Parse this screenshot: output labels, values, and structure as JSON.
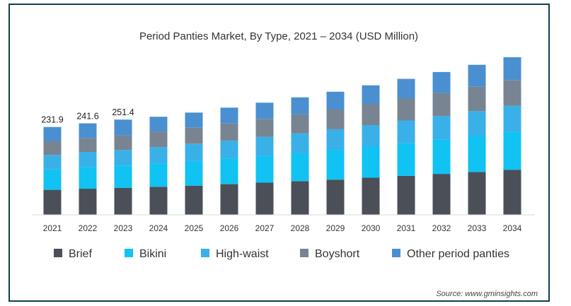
{
  "chart_data": {
    "type": "bar",
    "stacked": true,
    "title": "Period Panties Market, By Type, 2021 – 2034 (USD Million)",
    "categories": [
      "2021",
      "2022",
      "2023",
      "2024",
      "2025",
      "2026",
      "2027",
      "2028",
      "2029",
      "2030",
      "2031",
      "2032",
      "2033",
      "2034"
    ],
    "series": [
      {
        "name": "Brief",
        "color": "#4a4f58",
        "values": [
          66,
          69,
          71,
          74,
          77,
          81,
          85,
          89,
          93,
          98,
          103,
          108,
          113,
          119
        ]
      },
      {
        "name": "Bikini",
        "color": "#10c3f2",
        "values": [
          54,
          57,
          59,
          62,
          65,
          68,
          71,
          74,
          78,
          82,
          86,
          90,
          95,
          100
        ]
      },
      {
        "name": "High-waist",
        "color": "#3ab0e8",
        "values": [
          38,
          40,
          41,
          43,
          45,
          47,
          50,
          52,
          55,
          57,
          60,
          63,
          66,
          69
        ]
      },
      {
        "name": "Boyshort",
        "color": "#788492",
        "values": [
          36,
          37,
          39,
          41,
          43,
          45,
          47,
          50,
          52,
          55,
          58,
          61,
          64,
          67
        ]
      },
      {
        "name": "Other period panties",
        "color": "#4a90d0",
        "values": [
          37.9,
          38.6,
          41.4,
          39,
          40,
          42,
          43,
          45,
          47,
          50,
          52,
          55,
          58,
          61
        ]
      }
    ],
    "data_labels": [
      {
        "category": "2021",
        "text": "231.9"
      },
      {
        "category": "2022",
        "text": "241.6"
      },
      {
        "category": "2023",
        "text": "251.4"
      }
    ],
    "legend_position": "bottom",
    "grid": false
  },
  "source": "Source: www.gminsights.com"
}
